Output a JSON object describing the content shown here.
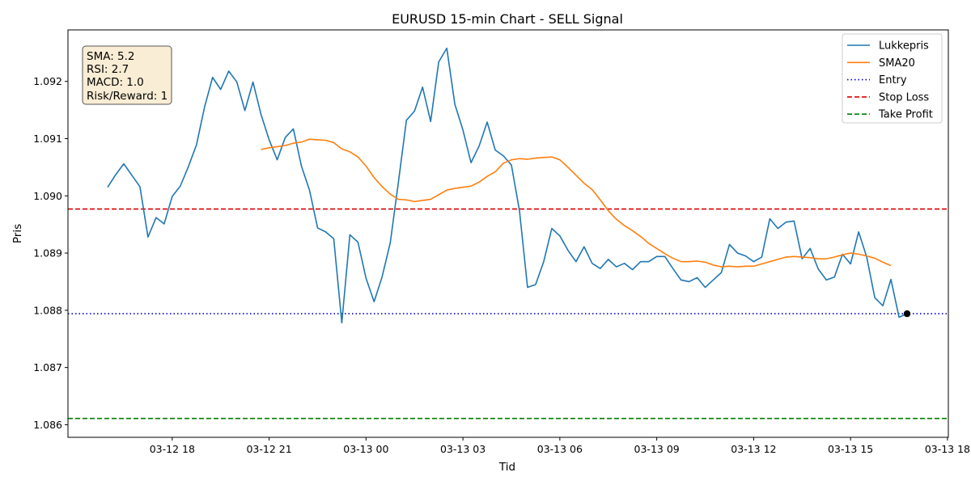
{
  "chart_data": {
    "type": "line",
    "title": "EURUSD 15-min Chart - SELL Signal",
    "xlabel": "Tid",
    "ylabel": "Pris",
    "x_start": "03-12 16:00",
    "x_step_minutes": 15,
    "x_ticks": [
      "03-12 18",
      "03-12 21",
      "03-13 00",
      "03-13 03",
      "03-13 06",
      "03-13 09",
      "03-13 12",
      "03-13 15",
      "03-13 18"
    ],
    "y_ticks": [
      "1.086",
      "1.087",
      "1.088",
      "1.089",
      "1.090",
      "1.091",
      "1.092"
    ],
    "ylim": [
      1.08578,
      1.0929
    ],
    "grid": false,
    "legend_position": "top-right",
    "series": [
      {
        "name": "Lukkepris",
        "color": "#1f77b4",
        "style": "solid",
        "values": [
          1.09015,
          1.09037,
          1.09056,
          1.09036,
          1.09016,
          1.08928,
          1.08962,
          1.08951,
          1.08999,
          1.09017,
          1.09051,
          1.09089,
          1.09155,
          1.09207,
          1.09186,
          1.09218,
          1.09199,
          1.09149,
          1.09199,
          1.09142,
          1.09098,
          1.09063,
          1.09102,
          1.09117,
          1.09052,
          1.0901,
          1.08944,
          1.08937,
          1.08925,
          1.08778,
          1.08932,
          1.08919,
          1.08856,
          1.08815,
          1.08859,
          1.08918,
          1.09023,
          1.09132,
          1.09148,
          1.0919,
          1.0913,
          1.09234,
          1.09258,
          1.0916,
          1.09115,
          1.09058,
          1.09087,
          1.09129,
          1.0908,
          1.0907,
          1.09054,
          1.08974,
          1.0884,
          1.08845,
          1.08885,
          1.08943,
          1.0893,
          1.08905,
          1.08885,
          1.08911,
          1.08882,
          1.08873,
          1.08889,
          1.08876,
          1.08882,
          1.08871,
          1.08885,
          1.08885,
          1.08894,
          1.08894,
          1.08873,
          1.08853,
          1.0885,
          1.08857,
          1.0884,
          1.08853,
          1.08866,
          1.08915,
          1.089,
          1.08895,
          1.08885,
          1.08893,
          1.0896,
          1.08943,
          1.08954,
          1.08956,
          1.0889,
          1.08908,
          1.08872,
          1.08853,
          1.08858,
          1.08898,
          1.08881,
          1.08937,
          1.08893,
          1.08822,
          1.08808,
          1.08854,
          1.08788,
          1.08794
        ]
      },
      {
        "name": "SMA20",
        "color": "#ff7f0e",
        "style": "solid",
        "start_index": 19,
        "values": [
          1.09081,
          1.09084,
          1.09086,
          1.09088,
          1.09092,
          1.09094,
          1.09099,
          1.09098,
          1.09097,
          1.09093,
          1.09082,
          1.09077,
          1.09068,
          1.09052,
          1.09032,
          1.09016,
          1.09003,
          1.08994,
          1.08993,
          1.0899,
          1.08992,
          1.08994,
          1.09002,
          1.0901,
          1.09013,
          1.09015,
          1.09017,
          1.09024,
          1.09034,
          1.09042,
          1.09057,
          1.09063,
          1.09065,
          1.09064,
          1.09066,
          1.09067,
          1.09068,
          1.09063,
          1.0905,
          1.09036,
          1.09022,
          1.09011,
          1.08993,
          1.08974,
          1.08959,
          1.08948,
          1.08939,
          1.08929,
          1.08917,
          1.08908,
          1.08899,
          1.08891,
          1.08885,
          1.08885,
          1.08886,
          1.08884,
          1.08879,
          1.08876,
          1.08877,
          1.08876,
          1.08877,
          1.08877,
          1.08881,
          1.08885,
          1.08889,
          1.08893,
          1.08894,
          1.08893,
          1.08892,
          1.0889,
          1.0889,
          1.08893,
          1.08897,
          1.089,
          1.08898,
          1.08895,
          1.08891,
          1.08884,
          1.08878
        ]
      },
      {
        "name": "Entry",
        "color": "#0000cc",
        "style": "dotted",
        "hline": 1.08794
      },
      {
        "name": "Stop Loss",
        "color": "#dd0000",
        "style": "dashed",
        "hline": 1.08977
      },
      {
        "name": "Take Profit",
        "color": "#008000",
        "style": "dashed",
        "hline": 1.08611
      }
    ],
    "entry_marker": {
      "index": 99,
      "value": 1.08794,
      "color": "#000000"
    },
    "info_box": {
      "lines": [
        "SMA: 5.2",
        "RSI: 2.7",
        "MACD: 1.0",
        "Risk/Reward: 1"
      ],
      "background": "#f5deb3"
    }
  }
}
